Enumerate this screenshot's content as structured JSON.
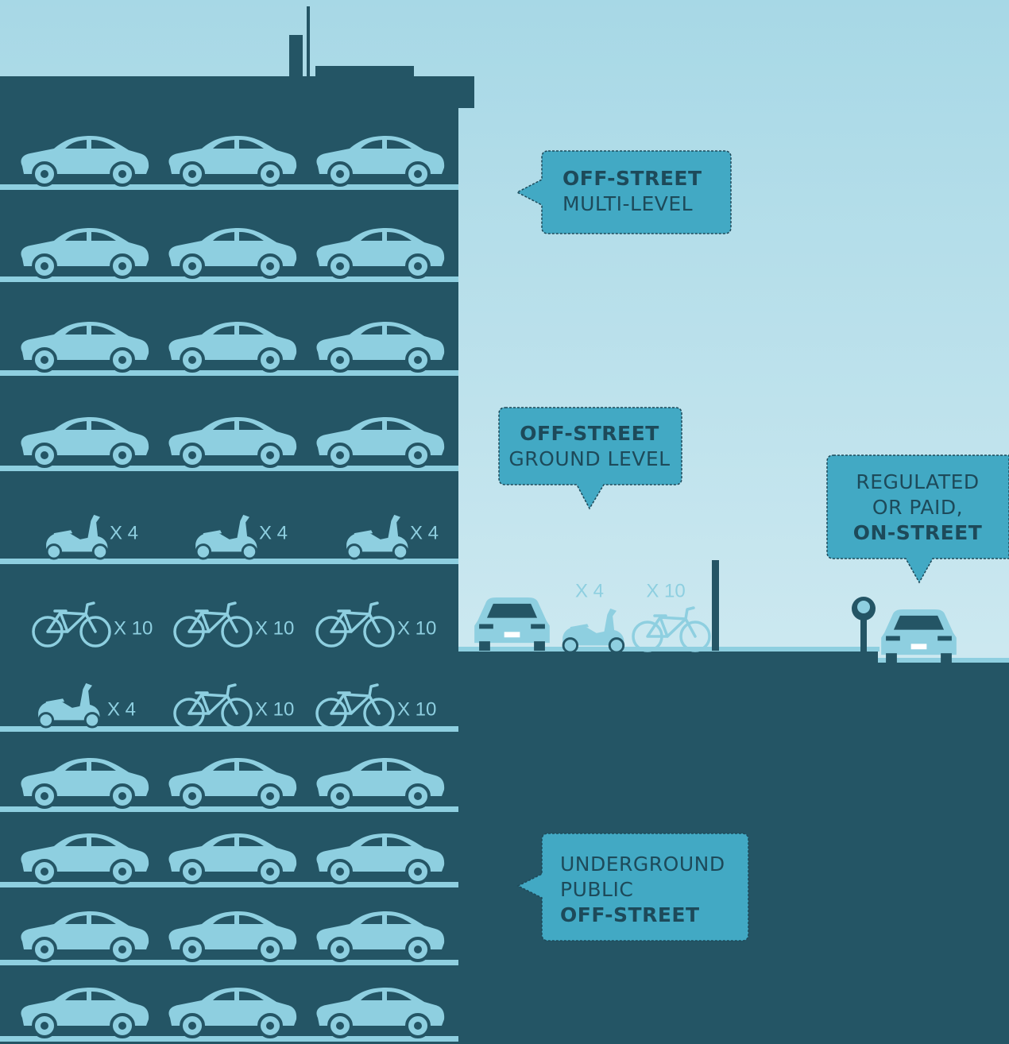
{
  "callouts": [
    {
      "lines": [
        {
          "text": "OFF-STREET",
          "bold": true
        },
        {
          "text": "MULTI-LEVEL",
          "bold": false
        }
      ]
    },
    {
      "lines": [
        {
          "text": "OFF-STREET",
          "bold": true
        },
        {
          "text": "GROUND LEVEL",
          "bold": false
        }
      ]
    },
    {
      "lines": [
        {
          "text": "REGULATED",
          "bold": false
        },
        {
          "text": "OR PAID,",
          "bold": false
        },
        {
          "text": "ON-STREET",
          "bold": true
        }
      ]
    },
    {
      "lines": [
        {
          "text": "UNDERGROUND",
          "bold": false
        },
        {
          "text": "PUBLIC",
          "bold": false
        },
        {
          "text": "OFF-STREET",
          "bold": true
        }
      ]
    }
  ],
  "building_labels": {
    "scooter_row": [
      "X 4",
      "X 4",
      "X 4"
    ],
    "bike_row": [
      "X 10",
      "X 10",
      "X 10"
    ],
    "mixed_row": [
      "X 4",
      "X 10",
      "X 10"
    ]
  },
  "street_labels": [
    "X 4",
    "X 10"
  ]
}
